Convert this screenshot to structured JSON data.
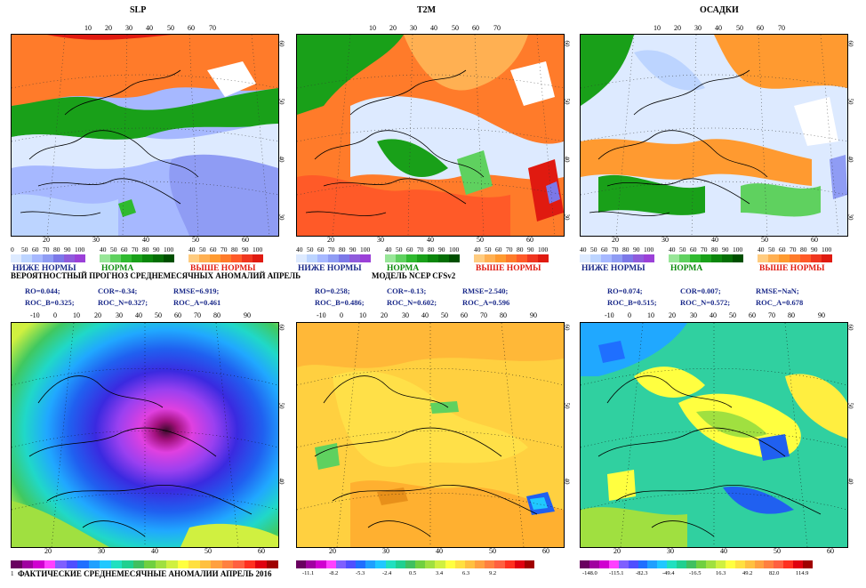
{
  "panels": {
    "slp": {
      "title": "SLP"
    },
    "t2m": {
      "title": "T2M"
    },
    "precip": {
      "title": "ОСАДКИ"
    }
  },
  "top_lon_ticks": [
    "10",
    "20",
    "30",
    "40",
    "50",
    "60",
    "70"
  ],
  "bottom_lon_ticks_top": [
    "20",
    "30",
    "40",
    "50",
    "60"
  ],
  "lat_side_ticks": [
    "60",
    "50",
    "40",
    "30"
  ],
  "prob_legend": {
    "numbers": [
      "40",
      "50",
      "60",
      "70",
      "80",
      "90",
      "100"
    ],
    "below_numbers": [
      "0",
      "50",
      "60",
      "70",
      "80",
      "90",
      "100"
    ],
    "below": "НИЖЕ НОРМЫ",
    "normal": "НОРМА",
    "above": "ВЫШЕ НОРМЫ",
    "below_colors": [
      "#ddeaff",
      "#bcd4ff",
      "#a6b8ff",
      "#8f9cf4",
      "#7c78e8",
      "#8f5bdc",
      "#9b40d8"
    ],
    "normal_colors": [
      "#98e698",
      "#5fd15f",
      "#2fba2f",
      "#19a019",
      "#0b860b",
      "#056e05",
      "#004f00"
    ],
    "above_colors": [
      "#ffcc80",
      "#ffb052",
      "#ff9a30",
      "#ff7b2a",
      "#ff5a28",
      "#f0361f",
      "#e01a10"
    ]
  },
  "forecast_header": "ВЕРОЯТНОСТНЫЙ ПРОГНОЗ СРЕДНЕМЕСЯЧНЫХ АНОМАЛИЙ  АПРЕЛЬ",
  "model_header": "МОДЕЛЬ NCEP  CFSv2",
  "metrics": {
    "slp": {
      "ro": "RO=0.044;",
      "cor": "COR=-0.34;",
      "rmse": "RMSE=6.919;",
      "roc_b": "ROC_B=0.325;",
      "roc_n": "ROC_N=0.327;",
      "roc_a": "ROC_A=0.461"
    },
    "t2m": {
      "ro": "RO=0.258;",
      "cor": "COR=-0.13;",
      "rmse": "RMSE=2.540;",
      "roc_b": "ROC_B=0.486;",
      "roc_n": "ROC_N=0.602;",
      "roc_a": "ROC_A=0.596"
    },
    "precip": {
      "ro": "RO=0.074;",
      "cor": "COR=0.007;",
      "rmse": "RMSE=NaN;",
      "roc_b": "ROC_B=0.515;",
      "roc_n": "ROC_N=0.572;",
      "roc_a": "ROC_A=0.678"
    }
  },
  "mid_lon_ticks": [
    "-10",
    "0",
    "10",
    "20",
    "30",
    "40",
    "50",
    "60",
    "70",
    "80",
    "90"
  ],
  "bottom_lat_ticks": [
    "20",
    "30",
    "40",
    "50",
    "60"
  ],
  "actual_header": "ФАКТИЧЕСКИЕ СРЕДНЕМЕСЯЧНЫЕ АНОМАЛИИ АПРЕЛЬ  2016",
  "slp_colorbar": {
    "colors": [
      "#6a0060",
      "#a000a0",
      "#d000d0",
      "#ff40ff",
      "#7f5fff",
      "#4f4fff",
      "#1f6fff",
      "#1fa0ff",
      "#20c8ff",
      "#20e0c0",
      "#20d090",
      "#40c060",
      "#70d040",
      "#a0e040",
      "#d0f040",
      "#ffff40",
      "#ffe040",
      "#ffc040",
      "#ffa040",
      "#ff8040",
      "#ff6040",
      "#ff3020",
      "#e00010",
      "#a00000"
    ],
    "label": "1"
  },
  "t2m_colorbar": {
    "colors": [
      "#6a0060",
      "#a000a0",
      "#d000d0",
      "#ff40ff",
      "#7f5fff",
      "#4f4fff",
      "#1f6fff",
      "#1fa0ff",
      "#20c8ff",
      "#20e0c0",
      "#20d090",
      "#40c060",
      "#70d040",
      "#a0e040",
      "#d0f040",
      "#ffff40",
      "#ffe040",
      "#ffc040",
      "#ffa040",
      "#ff8040",
      "#ff6040",
      "#ff3020",
      "#e00010",
      "#a00000"
    ],
    "labels": [
      "-11.1",
      "-8.2",
      "-5.3",
      "-2.4",
      "0.5",
      "3.4",
      "6.3",
      "9.2"
    ]
  },
  "precip_colorbar": {
    "colors": [
      "#6a0060",
      "#a000a0",
      "#d000d0",
      "#ff40ff",
      "#7f5fff",
      "#4f4fff",
      "#1f6fff",
      "#1fa0ff",
      "#20c8ff",
      "#20e0c0",
      "#20d090",
      "#40c060",
      "#70d040",
      "#a0e040",
      "#d0f040",
      "#ffff40",
      "#ffe040",
      "#ffc040",
      "#ffa040",
      "#ff8040",
      "#ff6040",
      "#ff3020",
      "#e00010",
      "#a00000"
    ],
    "labels": [
      "-148.0",
      "-115.1",
      "-82.3",
      "-49.4",
      "-16.5",
      "16.3",
      "49.2",
      "82.0",
      "114.9"
    ]
  }
}
